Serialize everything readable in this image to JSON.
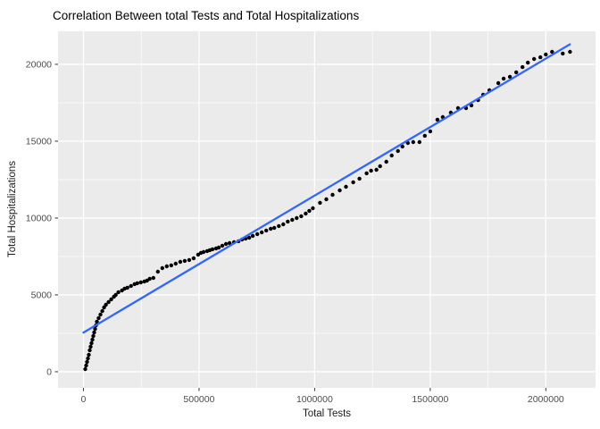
{
  "chart_data": {
    "type": "scatter",
    "title": "Correlation Between total Tests and Total Hospitalizations",
    "xlabel": "Total Tests",
    "ylabel": "Total Hospitalizations",
    "xlim": [
      -110000,
      2215000
    ],
    "ylim": [
      -1050,
      22150
    ],
    "x_ticks": [
      0,
      500000,
      1000000,
      1500000,
      2000000
    ],
    "x_tick_labels": [
      "0",
      "500000",
      "1000000",
      "1500000",
      "2000000"
    ],
    "y_ticks": [
      0,
      5000,
      10000,
      15000,
      20000
    ],
    "y_tick_labels": [
      "0",
      "5000",
      "10000",
      "15000",
      "20000"
    ],
    "x_minor_ticks": [
      250000,
      750000,
      1250000,
      1750000
    ],
    "y_minor_ticks": [
      2500,
      7500,
      12500,
      17500
    ],
    "grid": true,
    "legend_position": "none",
    "series": [
      {
        "name": "observations",
        "marker": "filled-circle",
        "points": [
          [
            7800,
            170
          ],
          [
            11600,
            410
          ],
          [
            15500,
            640
          ],
          [
            19400,
            870
          ],
          [
            23300,
            1100
          ],
          [
            27100,
            1400
          ],
          [
            31000,
            1630
          ],
          [
            34900,
            1860
          ],
          [
            38800,
            2090
          ],
          [
            42600,
            2330
          ],
          [
            46500,
            2560
          ],
          [
            50400,
            2790
          ],
          [
            54300,
            3020
          ],
          [
            58100,
            3260
          ],
          [
            65900,
            3490
          ],
          [
            73600,
            3720
          ],
          [
            81400,
            3950
          ],
          [
            89100,
            4190
          ],
          [
            96900,
            4360
          ],
          [
            108500,
            4530
          ],
          [
            120200,
            4710
          ],
          [
            131800,
            4880
          ],
          [
            139500,
            5000
          ],
          [
            151200,
            5170
          ],
          [
            166700,
            5290
          ],
          [
            178300,
            5410
          ],
          [
            189900,
            5470
          ],
          [
            205400,
            5580
          ],
          [
            220900,
            5700
          ],
          [
            232600,
            5760
          ],
          [
            248000,
            5810
          ],
          [
            263600,
            5870
          ],
          [
            275200,
            5930
          ],
          [
            286800,
            6050
          ],
          [
            302300,
            6100
          ],
          [
            321700,
            6510
          ],
          [
            341100,
            6740
          ],
          [
            360500,
            6860
          ],
          [
            379800,
            6920
          ],
          [
            399200,
            7030
          ],
          [
            418600,
            7150
          ],
          [
            438000,
            7210
          ],
          [
            457400,
            7270
          ],
          [
            476700,
            7380
          ],
          [
            496100,
            7620
          ],
          [
            507800,
            7730
          ],
          [
            519400,
            7790
          ],
          [
            534900,
            7850
          ],
          [
            546600,
            7910
          ],
          [
            558200,
            7970
          ],
          [
            573700,
            8020
          ],
          [
            585300,
            8080
          ],
          [
            600800,
            8200
          ],
          [
            616300,
            8310
          ],
          [
            631800,
            8370
          ],
          [
            651200,
            8430
          ],
          [
            670500,
            8490
          ],
          [
            686000,
            8600
          ],
          [
            701500,
            8660
          ],
          [
            717000,
            8720
          ],
          [
            732500,
            8840
          ],
          [
            751900,
            8950
          ],
          [
            771300,
            9070
          ],
          [
            790700,
            9190
          ],
          [
            810100,
            9300
          ],
          [
            825600,
            9360
          ],
          [
            845000,
            9480
          ],
          [
            864400,
            9590
          ],
          [
            883700,
            9770
          ],
          [
            903100,
            9880
          ],
          [
            922500,
            10000
          ],
          [
            941900,
            10120
          ],
          [
            961300,
            10290
          ],
          [
            976800,
            10470
          ],
          [
            992300,
            10640
          ],
          [
            1023300,
            10990
          ],
          [
            1050400,
            11220
          ],
          [
            1077500,
            11510
          ],
          [
            1108600,
            11800
          ],
          [
            1135700,
            12030
          ],
          [
            1166700,
            12330
          ],
          [
            1193800,
            12560
          ],
          [
            1224800,
            12910
          ],
          [
            1244200,
            13080
          ],
          [
            1267400,
            13140
          ],
          [
            1283000,
            13370
          ],
          [
            1310100,
            13660
          ],
          [
            1333300,
            14070
          ],
          [
            1360500,
            14360
          ],
          [
            1379800,
            14650
          ],
          [
            1403100,
            14880
          ],
          [
            1426300,
            14940
          ],
          [
            1453500,
            14940
          ],
          [
            1476700,
            15350
          ],
          [
            1500000,
            15640
          ],
          [
            1531000,
            16400
          ],
          [
            1554300,
            16570
          ],
          [
            1589100,
            16860
          ],
          [
            1620100,
            17150
          ],
          [
            1655000,
            17150
          ],
          [
            1678200,
            17330
          ],
          [
            1707000,
            17670
          ],
          [
            1728600,
            18020
          ],
          [
            1755700,
            18310
          ],
          [
            1794400,
            18780
          ],
          [
            1817700,
            19070
          ],
          [
            1844800,
            19190
          ],
          [
            1871900,
            19480
          ],
          [
            1899000,
            19820
          ],
          [
            1922300,
            20110
          ],
          [
            1949400,
            20350
          ],
          [
            1976500,
            20460
          ],
          [
            1999700,
            20640
          ],
          [
            2026900,
            20810
          ],
          [
            2073400,
            20700
          ],
          [
            2104400,
            20810
          ]
        ]
      }
    ],
    "trend_line": {
      "x1": 0,
      "y1": 2550,
      "x2": 2104000,
      "y2": 21300
    },
    "colors": {
      "point": "#000000",
      "trend": "#3366FF",
      "panel_bg": "#EBEBEB",
      "grid": "#FFFFFF",
      "tick_mark": "#333333",
      "tick_text": "#4D4D4D",
      "title_text": "#000000"
    }
  }
}
